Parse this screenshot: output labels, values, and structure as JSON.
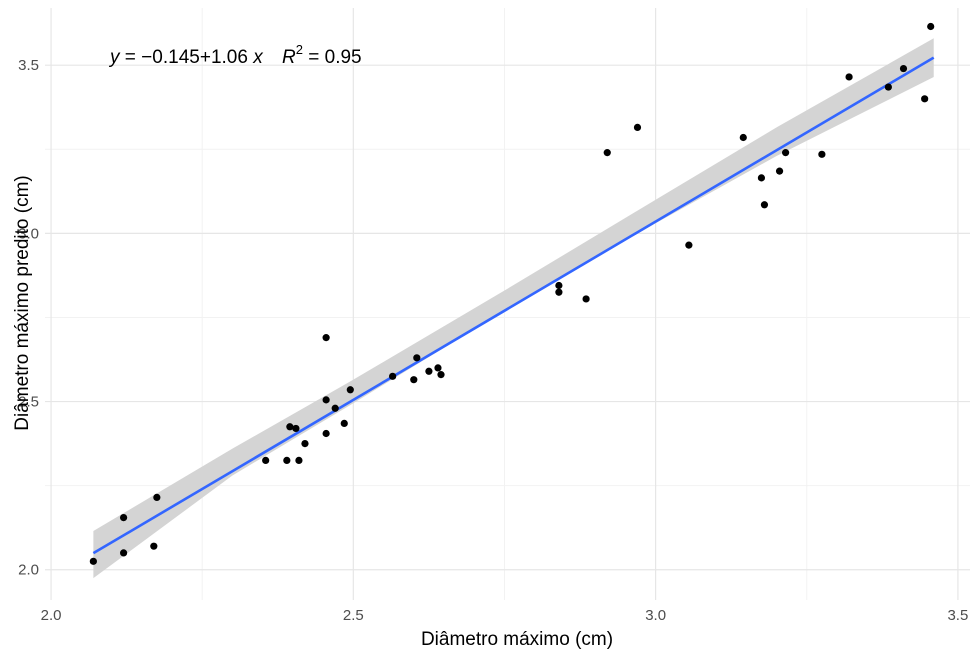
{
  "chart_data": {
    "type": "scatter",
    "xlabel": "Diâmetro máximo (cm)",
    "ylabel": "Diâmetro máximo predito (cm)",
    "xlim": [
      1.99,
      3.52
    ],
    "ylim": [
      1.91,
      3.67
    ],
    "x_ticks": [
      2.0,
      2.5,
      3.0,
      3.5
    ],
    "y_ticks": [
      2.0,
      2.5,
      3.0,
      3.5
    ],
    "x_tick_labels": [
      "2.0",
      "2.5",
      "3.0",
      "3.5"
    ],
    "y_tick_labels": [
      "2.0",
      "2.5",
      "3.0",
      "3.5"
    ],
    "grid": true,
    "annotation": {
      "y_var": "y",
      "eq_sign": "=",
      "minus": "−",
      "intercept": "0.145",
      "plus": "+",
      "slope": "1.06",
      "x_var": "x",
      "r_label": "R",
      "r_exp": "2",
      "r_eq": "=",
      "r_value": "0.95"
    },
    "fit": {
      "intercept": -0.145,
      "slope": 1.06,
      "x_range": [
        2.07,
        3.46
      ],
      "ci": [
        {
          "x": 2.07,
          "lo": 1.975,
          "hi": 2.115
        },
        {
          "x": 2.3,
          "lo": 2.28,
          "hi": 2.36
        },
        {
          "x": 2.5,
          "lo": 2.495,
          "hi": 2.565
        },
        {
          "x": 2.75,
          "lo": 2.77,
          "hi": 2.83
        },
        {
          "x": 3.0,
          "lo": 3.03,
          "hi": 3.1
        },
        {
          "x": 3.2,
          "lo": 3.23,
          "hi": 3.315
        },
        {
          "x": 3.46,
          "lo": 3.465,
          "hi": 3.58
        }
      ],
      "line_color": "#3366ff",
      "band_color": "#d4d4d4"
    },
    "point_color": "#000000",
    "points": [
      {
        "x": 2.07,
        "y": 2.025
      },
      {
        "x": 2.12,
        "y": 2.05
      },
      {
        "x": 2.12,
        "y": 2.155
      },
      {
        "x": 2.17,
        "y": 2.07
      },
      {
        "x": 2.175,
        "y": 2.215
      },
      {
        "x": 2.355,
        "y": 2.325
      },
      {
        "x": 2.39,
        "y": 2.325
      },
      {
        "x": 2.395,
        "y": 2.425
      },
      {
        "x": 2.405,
        "y": 2.42
      },
      {
        "x": 2.41,
        "y": 2.325
      },
      {
        "x": 2.42,
        "y": 2.375
      },
      {
        "x": 2.455,
        "y": 2.405
      },
      {
        "x": 2.455,
        "y": 2.505
      },
      {
        "x": 2.455,
        "y": 2.69
      },
      {
        "x": 2.47,
        "y": 2.48
      },
      {
        "x": 2.485,
        "y": 2.435
      },
      {
        "x": 2.495,
        "y": 2.535
      },
      {
        "x": 2.565,
        "y": 2.575
      },
      {
        "x": 2.6,
        "y": 2.565
      },
      {
        "x": 2.605,
        "y": 2.63
      },
      {
        "x": 2.625,
        "y": 2.59
      },
      {
        "x": 2.64,
        "y": 2.6
      },
      {
        "x": 2.645,
        "y": 2.58
      },
      {
        "x": 2.84,
        "y": 2.845
      },
      {
        "x": 2.84,
        "y": 2.825
      },
      {
        "x": 2.885,
        "y": 2.805
      },
      {
        "x": 2.92,
        "y": 3.24
      },
      {
        "x": 2.97,
        "y": 3.315
      },
      {
        "x": 3.055,
        "y": 2.965
      },
      {
        "x": 3.145,
        "y": 3.285
      },
      {
        "x": 3.175,
        "y": 3.165
      },
      {
        "x": 3.18,
        "y": 3.085
      },
      {
        "x": 3.205,
        "y": 3.185
      },
      {
        "x": 3.215,
        "y": 3.24
      },
      {
        "x": 3.275,
        "y": 3.235
      },
      {
        "x": 3.32,
        "y": 3.465
      },
      {
        "x": 3.385,
        "y": 3.435
      },
      {
        "x": 3.41,
        "y": 3.49
      },
      {
        "x": 3.445,
        "y": 3.4
      },
      {
        "x": 3.455,
        "y": 3.615
      }
    ]
  }
}
